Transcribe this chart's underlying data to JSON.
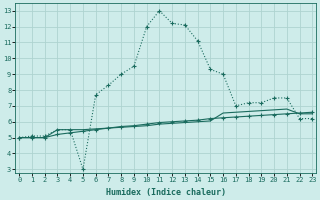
{
  "xlabel": "Humidex (Indice chaleur)",
  "bg_color": "#ceecea",
  "line_color": "#1a6b5e",
  "grid_color": "#aed4d0",
  "x_ticks": [
    0,
    1,
    2,
    3,
    4,
    5,
    6,
    7,
    8,
    9,
    10,
    11,
    12,
    13,
    14,
    15,
    16,
    17,
    18,
    19,
    20,
    21,
    22,
    23
  ],
  "y_ticks": [
    3,
    4,
    5,
    6,
    7,
    8,
    9,
    10,
    11,
    12,
    13
  ],
  "xlim": [
    -0.3,
    23.3
  ],
  "ylim": [
    2.8,
    13.5
  ],
  "curve1_x": [
    0,
    1,
    2,
    3,
    4,
    5,
    6,
    7,
    8,
    9,
    10,
    11,
    12,
    13,
    14,
    15,
    16,
    17,
    18,
    19,
    20,
    21,
    22,
    23
  ],
  "curve1_y": [
    5.0,
    5.1,
    5.1,
    5.5,
    5.5,
    3.0,
    7.7,
    8.3,
    9.0,
    9.5,
    12.0,
    13.0,
    12.2,
    12.1,
    11.1,
    9.3,
    9.0,
    7.0,
    7.2,
    7.2,
    7.5,
    7.5,
    6.2,
    6.2
  ],
  "curve2_x": [
    0,
    1,
    2,
    3,
    4,
    5,
    6,
    7,
    8,
    9,
    10,
    11,
    12,
    13,
    14,
    15,
    16,
    17,
    18,
    19,
    20,
    21,
    22,
    23
  ],
  "curve2_y": [
    5.0,
    5.0,
    5.0,
    5.2,
    5.3,
    5.4,
    5.5,
    5.6,
    5.7,
    5.75,
    5.85,
    5.95,
    6.0,
    6.05,
    6.1,
    6.2,
    6.25,
    6.3,
    6.35,
    6.4,
    6.45,
    6.5,
    6.55,
    6.6
  ],
  "curve3_x": [
    0,
    1,
    2,
    3,
    4,
    5,
    6,
    7,
    8,
    9,
    10,
    11,
    12,
    13,
    14,
    15,
    16,
    17,
    18,
    19,
    20,
    21,
    22,
    23
  ],
  "curve3_y": [
    5.0,
    5.0,
    5.0,
    5.5,
    5.5,
    5.5,
    5.55,
    5.6,
    5.65,
    5.7,
    5.75,
    5.85,
    5.9,
    5.95,
    6.0,
    6.05,
    6.55,
    6.6,
    6.65,
    6.7,
    6.75,
    6.8,
    6.5,
    6.5
  ]
}
